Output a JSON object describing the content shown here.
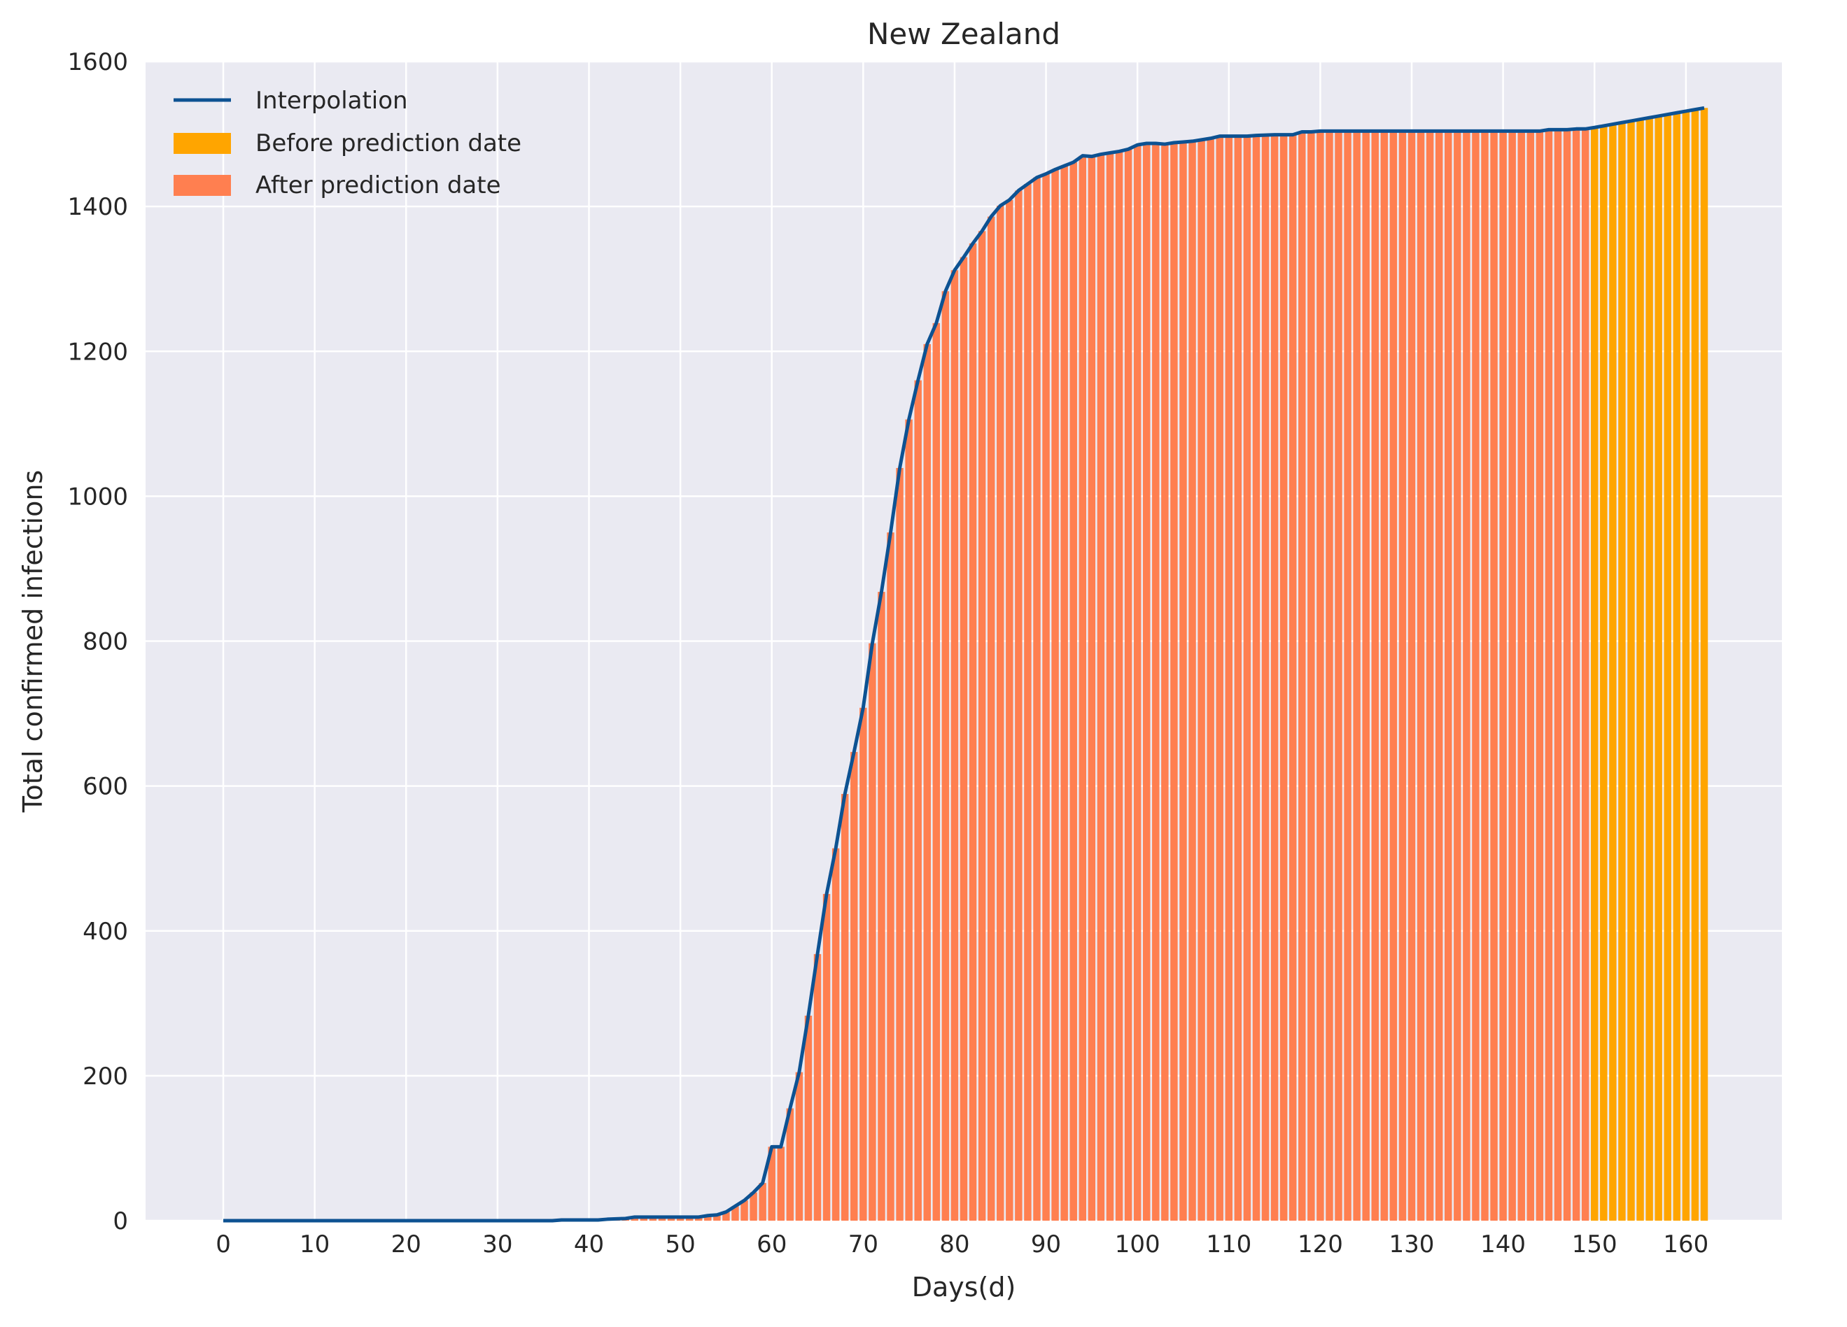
{
  "chart_data": {
    "type": "bar",
    "title": "New Zealand",
    "xlabel": "Days(d)",
    "ylabel": "Total confirmed infections",
    "xlim": [
      -8.5,
      170.5
    ],
    "ylim": [
      0,
      1600
    ],
    "x_ticks": [
      0,
      10,
      20,
      30,
      40,
      50,
      60,
      70,
      80,
      90,
      100,
      110,
      120,
      130,
      140,
      150,
      160
    ],
    "y_ticks": [
      0,
      200,
      400,
      600,
      800,
      1000,
      1200,
      1400,
      1600
    ],
    "grid": true,
    "legend_position": "top-left",
    "prediction_split_day": 150,
    "colors": {
      "background": "#eaeaf2",
      "grid": "#ffffff",
      "interpolation": "#0d5292",
      "before_prediction": "#ffa500",
      "after_prediction": "#ff7f50"
    },
    "series": [
      {
        "name": "Interpolation",
        "kind": "line"
      },
      {
        "name": "Before prediction date",
        "kind": "bar",
        "color": "#ffa500"
      },
      {
        "name": "After prediction date",
        "kind": "bar",
        "color": "#ff7f50"
      }
    ],
    "keypoints": [
      [
        0,
        0
      ],
      [
        36,
        0
      ],
      [
        37,
        1
      ],
      [
        41,
        1
      ],
      [
        42,
        2
      ],
      [
        44,
        3
      ],
      [
        45,
        5
      ],
      [
        52,
        5
      ],
      [
        53,
        7
      ],
      [
        54,
        8
      ],
      [
        55,
        12
      ],
      [
        56,
        20
      ],
      [
        57,
        28
      ],
      [
        58,
        39
      ],
      [
        59,
        52
      ],
      [
        60,
        102
      ],
      [
        61,
        102
      ],
      [
        62,
        155
      ],
      [
        63,
        205
      ],
      [
        64,
        283
      ],
      [
        65,
        368
      ],
      [
        66,
        451
      ],
      [
        67,
        514
      ],
      [
        68,
        589
      ],
      [
        69,
        647
      ],
      [
        70,
        708
      ],
      [
        71,
        797
      ],
      [
        72,
        868
      ],
      [
        73,
        950
      ],
      [
        74,
        1039
      ],
      [
        75,
        1106
      ],
      [
        76,
        1160
      ],
      [
        77,
        1210
      ],
      [
        78,
        1239
      ],
      [
        79,
        1283
      ],
      [
        80,
        1312
      ],
      [
        81,
        1330
      ],
      [
        82,
        1349
      ],
      [
        83,
        1366
      ],
      [
        84,
        1386
      ],
      [
        85,
        1401
      ],
      [
        86,
        1409
      ],
      [
        87,
        1422
      ],
      [
        88,
        1431
      ],
      [
        89,
        1440
      ],
      [
        90,
        1445
      ],
      [
        91,
        1451
      ],
      [
        92,
        1456
      ],
      [
        93,
        1461
      ],
      [
        94,
        1470
      ],
      [
        95,
        1469
      ],
      [
        96,
        1472
      ],
      [
        97,
        1474
      ],
      [
        98,
        1476
      ],
      [
        99,
        1479
      ],
      [
        100,
        1485
      ],
      [
        101,
        1487
      ],
      [
        102,
        1487
      ],
      [
        103,
        1486
      ],
      [
        104,
        1488
      ],
      [
        105,
        1489
      ],
      [
        106,
        1490
      ],
      [
        107,
        1492
      ],
      [
        108,
        1494
      ],
      [
        109,
        1497
      ],
      [
        112,
        1497
      ],
      [
        113,
        1498
      ],
      [
        115,
        1499
      ],
      [
        117,
        1499
      ],
      [
        118,
        1503
      ],
      [
        119,
        1503
      ],
      [
        120,
        1504
      ],
      [
        144,
        1504
      ],
      [
        145,
        1506
      ],
      [
        147,
        1506
      ],
      [
        148,
        1507
      ],
      [
        149,
        1507
      ],
      [
        150,
        1509
      ],
      [
        162,
        1536
      ]
    ]
  }
}
